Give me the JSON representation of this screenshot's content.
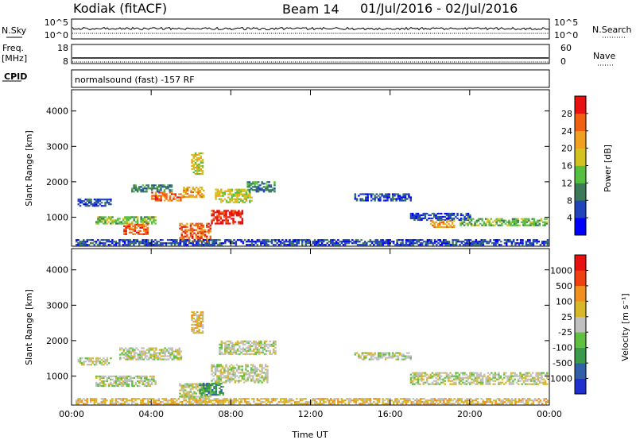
{
  "header": {
    "station": "Kodiak (fitACF)",
    "beam": "Beam 14",
    "date_range": "01/Jul/2016 - 02/Jul/2016",
    "mode_label": "normalsound (fast) -157 RF"
  },
  "top_panels": {
    "nsky_label": "N.Sky",
    "nsearch_label": "N.Search",
    "freq_label": "Freq.",
    "freq_unit": "[MHz]",
    "cpid_label": "CPID",
    "nave_label": "Nave",
    "noise_ticks": [
      "10^5",
      "10^0"
    ],
    "freq_ticks": [
      "18",
      "8"
    ],
    "nave_ticks": [
      "60",
      "0"
    ]
  },
  "colors": {
    "power": [
      "#0000ff",
      "#2244bb",
      "#3b7a57",
      "#55c040",
      "#d4c220",
      "#f0a020",
      "#f06010",
      "#e81010"
    ],
    "velocity": [
      "#2030d0",
      "#3060a8",
      "#3a9a4a",
      "#60c040",
      "#c0c0c0",
      "#d8b828",
      "#f09020",
      "#f04010",
      "#e81010"
    ]
  },
  "chart_data": [
    {
      "type": "heatmap",
      "parameter": "power",
      "xlabel": "Time UT",
      "ylabel": "Slant Range [km]",
      "colorbar_label": "Power [dB]",
      "colorbar_ticks": [
        "28",
        "24",
        "20",
        "16",
        "12",
        "8",
        "4"
      ],
      "xlim": [
        0,
        24
      ],
      "ylim": [
        180,
        4600
      ],
      "yticks": [
        "1000",
        "2000",
        "3000",
        "4000"
      ],
      "xticks": [
        "00:00",
        "04:00",
        "08:00",
        "12:00",
        "16:00",
        "20:00",
        "00:00"
      ],
      "regions": [
        {
          "t0": 0.3,
          "t1": 2.0,
          "r0": 1300,
          "r1": 1500,
          "level": 1
        },
        {
          "t0": 1.2,
          "t1": 4.2,
          "r0": 800,
          "r1": 1000,
          "level": 3
        },
        {
          "t0": 2.6,
          "t1": 3.8,
          "r0": 500,
          "r1": 800,
          "level": 6
        },
        {
          "t0": 3.0,
          "t1": 5.0,
          "r0": 1700,
          "r1": 1900,
          "level": 2
        },
        {
          "t0": 4.0,
          "t1": 5.6,
          "r0": 1450,
          "r1": 1700,
          "level": 6
        },
        {
          "t0": 5.4,
          "t1": 7.0,
          "r0": 300,
          "r1": 800,
          "level": 6
        },
        {
          "t0": 5.6,
          "t1": 6.6,
          "r0": 1550,
          "r1": 1850,
          "level": 5
        },
        {
          "t0": 7.0,
          "t1": 8.6,
          "r0": 800,
          "r1": 1200,
          "level": 7
        },
        {
          "t0": 7.2,
          "t1": 9.0,
          "r0": 1400,
          "r1": 1800,
          "level": 4
        },
        {
          "t0": 8.8,
          "t1": 10.2,
          "r0": 1700,
          "r1": 2000,
          "level": 2
        },
        {
          "t0": 6.0,
          "t1": 6.6,
          "r0": 2200,
          "r1": 2800,
          "level": 4
        },
        {
          "t0": 14.2,
          "t1": 17.0,
          "r0": 1450,
          "r1": 1650,
          "level": 1
        },
        {
          "t0": 17.0,
          "t1": 20.0,
          "r0": 900,
          "r1": 1100,
          "level": 1
        },
        {
          "t0": 18.0,
          "t1": 19.2,
          "r0": 700,
          "r1": 900,
          "level": 5
        },
        {
          "t0": 19.5,
          "t1": 23.9,
          "r0": 750,
          "r1": 950,
          "level": 3
        },
        {
          "t0": 0.2,
          "t1": 23.9,
          "r0": 200,
          "r1": 350,
          "level": 1
        }
      ]
    },
    {
      "type": "heatmap",
      "parameter": "velocity",
      "xlabel": "Time UT",
      "ylabel": "Slant Range [km]",
      "colorbar_label": "Velocity [m s⁻¹]",
      "colorbar_ticks": [
        "1000",
        "500",
        "100",
        "25",
        "-25",
        "-100",
        "-500",
        "-1000"
      ],
      "xlim": [
        0,
        24
      ],
      "ylim": [
        180,
        4600
      ],
      "yticks": [
        "1000",
        "2000",
        "3000",
        "4000"
      ],
      "xticks": [
        "00:00",
        "04:00",
        "08:00",
        "12:00",
        "16:00",
        "20:00",
        "00:00"
      ],
      "regions": [
        {
          "t0": 0.3,
          "t1": 2.0,
          "r0": 1300,
          "r1": 1500,
          "level": 4
        },
        {
          "t0": 1.2,
          "t1": 4.2,
          "r0": 700,
          "r1": 1000,
          "level": 4
        },
        {
          "t0": 2.4,
          "t1": 5.5,
          "r0": 1450,
          "r1": 1800,
          "level": 4
        },
        {
          "t0": 5.4,
          "t1": 7.0,
          "r0": 350,
          "r1": 800,
          "level": 4
        },
        {
          "t0": 6.4,
          "t1": 7.6,
          "r0": 450,
          "r1": 800,
          "level": 2
        },
        {
          "t0": 7.0,
          "t1": 9.8,
          "r0": 800,
          "r1": 1300,
          "level": 4
        },
        {
          "t0": 7.4,
          "t1": 10.2,
          "r0": 1600,
          "r1": 2000,
          "level": 4
        },
        {
          "t0": 6.0,
          "t1": 6.6,
          "r0": 2200,
          "r1": 2800,
          "level": 5
        },
        {
          "t0": 14.2,
          "t1": 17.0,
          "r0": 1450,
          "r1": 1650,
          "level": 4
        },
        {
          "t0": 17.0,
          "t1": 23.9,
          "r0": 750,
          "r1": 1100,
          "level": 4
        },
        {
          "t0": 0.2,
          "t1": 23.9,
          "r0": 200,
          "r1": 350,
          "level": 5
        }
      ]
    }
  ]
}
